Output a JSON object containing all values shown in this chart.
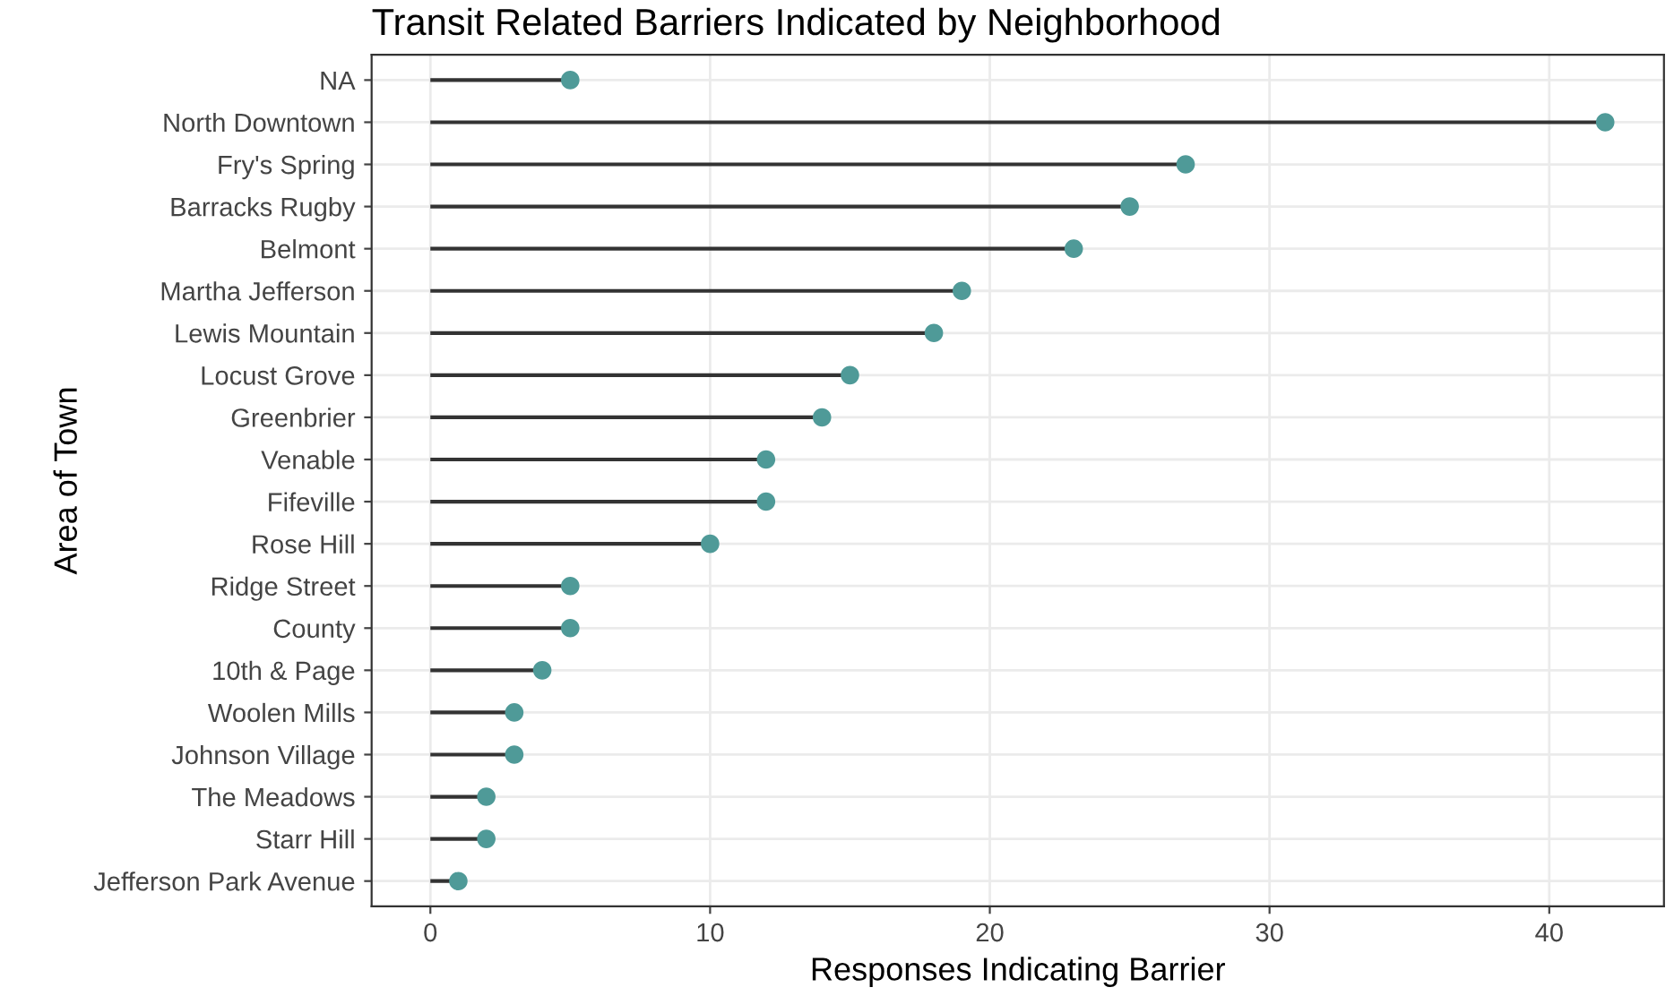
{
  "chart_data": {
    "type": "lollipop",
    "orientation": "horizontal",
    "title": "Transit Related Barriers Indicated by Neighborhood",
    "xlabel": "Responses Indicating Barrier",
    "ylabel": "Area of Town",
    "categories": [
      "NA",
      "North Downtown",
      "Fry's Spring",
      "Barracks Rugby",
      "Belmont",
      "Martha Jefferson",
      "Lewis Mountain",
      "Locust Grove",
      "Greenbrier",
      "Venable",
      "Fifeville",
      "Rose Hill",
      "Ridge Street",
      "County",
      "10th & Page",
      "Woolen Mills",
      "Johnson Village",
      "The Meadows",
      "Starr Hill",
      "Jefferson Park Avenue"
    ],
    "values": [
      5,
      42,
      27,
      25,
      23,
      19,
      18,
      15,
      14,
      12,
      12,
      10,
      5,
      5,
      4,
      3,
      3,
      2,
      2,
      1
    ],
    "color": "#4f9a98",
    "xlim": [
      -2.1,
      44.1
    ],
    "xticks": [
      0,
      10,
      20,
      30,
      40
    ],
    "grid": true,
    "marker": "circle"
  }
}
